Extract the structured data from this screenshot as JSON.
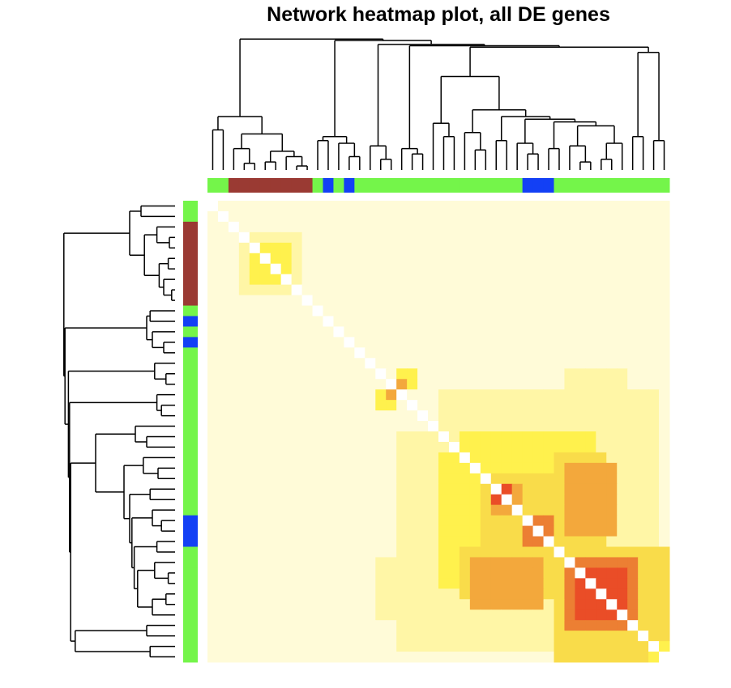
{
  "title": "Network heatmap plot, all DE genes",
  "chart_data": {
    "type": "heatmap",
    "title": "Network heatmap plot, all DE genes",
    "n_genes": 44,
    "module_colors": [
      "#74f54a",
      "#74f54a",
      "#9a3a33",
      "#9a3a33",
      "#9a3a33",
      "#9a3a33",
      "#9a3a33",
      "#9a3a33",
      "#9a3a33",
      "#9a3a33",
      "#74f54a",
      "#1340f5",
      "#74f54a",
      "#1340f5",
      "#74f54a",
      "#74f54a",
      "#74f54a",
      "#74f54a",
      "#74f54a",
      "#74f54a",
      "#74f54a",
      "#74f54a",
      "#74f54a",
      "#74f54a",
      "#74f54a",
      "#74f54a",
      "#74f54a",
      "#74f54a",
      "#74f54a",
      "#74f54a",
      "#1340f5",
      "#1340f5",
      "#1340f5",
      "#74f54a",
      "#74f54a",
      "#74f54a",
      "#74f54a",
      "#74f54a",
      "#74f54a",
      "#74f54a",
      "#74f54a",
      "#74f54a",
      "#74f54a",
      "#74f54a"
    ],
    "color_scale": [
      "#fffbd8",
      "#fff6a6",
      "#fff14d",
      "#f9dc4a",
      "#f3a83c",
      "#ec7f33",
      "#ea4d27"
    ],
    "blocks": [
      {
        "rows": [
          3,
          9
        ],
        "cols": [
          3,
          9
        ],
        "level": 1
      },
      {
        "rows": [
          4,
          8
        ],
        "cols": [
          4,
          8
        ],
        "level": 2
      },
      {
        "rows": [
          5,
          6
        ],
        "cols": [
          5,
          6
        ],
        "level": 6
      },
      {
        "rows": [
          7,
          8
        ],
        "cols": [
          7,
          8
        ],
        "level": 6
      },
      {
        "rows": [
          18,
          20
        ],
        "cols": [
          16,
          18
        ],
        "level": 2
      },
      {
        "rows": [
          18,
          19
        ],
        "cols": [
          17,
          18
        ],
        "level": 4
      },
      {
        "rows": [
          16,
          26
        ],
        "cols": [
          34,
          40
        ],
        "level": 1
      },
      {
        "rows": [
          22,
          43
        ],
        "cols": [
          18,
          43
        ],
        "level": 1
      },
      {
        "rows": [
          24,
          37
        ],
        "cols": [
          22,
          36
        ],
        "level": 2
      },
      {
        "rows": [
          26,
          36
        ],
        "cols": [
          27,
          33
        ],
        "level": 3
      },
      {
        "rows": [
          27,
          30
        ],
        "cols": [
          28,
          30
        ],
        "level": 4
      },
      {
        "rows": [
          28,
          29
        ],
        "cols": [
          27,
          29
        ],
        "level": 6
      },
      {
        "rows": [
          33,
          42
        ],
        "cols": [
          33,
          44
        ],
        "level": 3
      },
      {
        "rows": [
          34,
          41
        ],
        "cols": [
          34,
          40
        ],
        "level": 5
      },
      {
        "rows": [
          35,
          39
        ],
        "cols": [
          35,
          40
        ],
        "level": 6
      },
      {
        "rows": [
          31,
          33
        ],
        "cols": [
          30,
          33
        ],
        "level": 5
      },
      {
        "rows": [
          31,
          32
        ],
        "cols": [
          31,
          32
        ],
        "level": 6
      },
      {
        "rows": [
          25,
          32
        ],
        "cols": [
          34,
          39
        ],
        "level": 4
      },
      {
        "rows": [
          33,
          38
        ],
        "cols": [
          24,
          33
        ],
        "level": 3
      },
      {
        "rows": [
          34,
          37
        ],
        "cols": [
          25,
          30
        ],
        "level": 4
      },
      {
        "rows": [
          40,
          44
        ],
        "cols": [
          41,
          44
        ],
        "level": 2
      },
      {
        "rows": [
          41,
          42
        ],
        "cols": [
          41,
          42
        ],
        "level": 6
      },
      {
        "rows": [
          42,
          43
        ],
        "cols": [
          42,
          43
        ],
        "level": 6
      }
    ],
    "xlabel": "",
    "ylabel": ""
  }
}
